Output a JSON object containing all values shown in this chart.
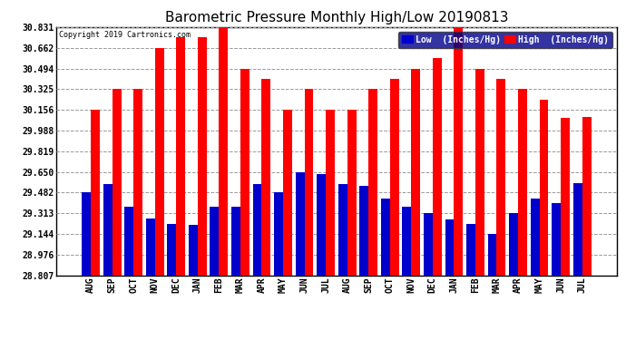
{
  "title": "Barometric Pressure Monthly High/Low 20190813",
  "copyright": "Copyright 2019 Cartronics.com",
  "categories": [
    "AUG",
    "SEP",
    "OCT",
    "NOV",
    "DEC",
    "JAN",
    "FEB",
    "MAR",
    "APR",
    "MAY",
    "JUN",
    "JUL",
    "AUG",
    "SEP",
    "OCT",
    "NOV",
    "DEC",
    "JAN",
    "FEB",
    "MAR",
    "APR",
    "MAY",
    "JUN",
    "JUL"
  ],
  "highs": [
    30.156,
    30.325,
    30.325,
    30.662,
    30.75,
    30.75,
    30.831,
    30.494,
    30.41,
    30.156,
    30.325,
    30.156,
    30.156,
    30.325,
    30.41,
    30.494,
    30.577,
    30.831,
    30.494,
    30.41,
    30.325,
    30.24,
    30.09,
    30.1
  ],
  "lows": [
    29.482,
    29.55,
    29.37,
    29.27,
    29.23,
    29.22,
    29.37,
    29.37,
    29.55,
    29.482,
    29.65,
    29.63,
    29.55,
    29.54,
    29.43,
    29.37,
    29.313,
    29.26,
    29.23,
    29.144,
    29.313,
    29.43,
    29.4,
    29.56
  ],
  "high_color": "#ff0000",
  "low_color": "#0000cc",
  "bg_color": "#ffffff",
  "plot_bg_color": "#ffffff",
  "grid_color": "#999999",
  "ylim_min": 28.807,
  "ylim_max": 30.831,
  "yticks": [
    28.807,
    28.976,
    29.144,
    29.313,
    29.482,
    29.65,
    29.819,
    29.988,
    30.156,
    30.325,
    30.494,
    30.662,
    30.831
  ],
  "bar_width": 0.42,
  "title_fontsize": 11,
  "tick_fontsize": 7,
  "legend_low_label": "Low  (Inches/Hg)",
  "legend_high_label": "High  (Inches/Hg)"
}
